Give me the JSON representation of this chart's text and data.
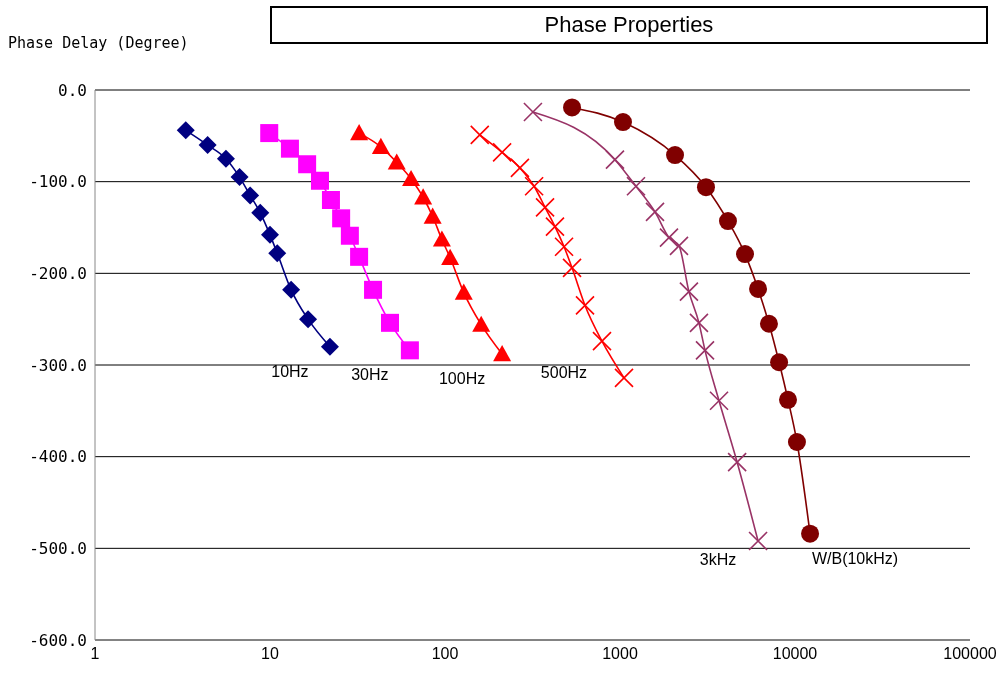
{
  "chart_data": {
    "type": "line",
    "title": "Phase Properties",
    "ylabel": "Phase Delay (Degree)",
    "log": "x",
    "grid": "y",
    "legend": false,
    "xlim": [
      1,
      100000
    ],
    "xticks": [
      1,
      10,
      100,
      1000,
      10000,
      100000
    ],
    "ylim": [
      -600,
      0
    ],
    "yticks": [
      {
        "value": 0,
        "label": "0.0"
      },
      {
        "value": -100,
        "label": "-100.0"
      },
      {
        "value": -200,
        "label": "-200.0"
      },
      {
        "value": -300,
        "label": "-300.0"
      },
      {
        "value": -400,
        "label": "-400.0"
      },
      {
        "value": -500,
        "label": "-500.0"
      },
      {
        "value": -600,
        "label": "-600.0"
      }
    ],
    "series": [
      {
        "name": "10Hz",
        "color": "#000080",
        "marker": "diamond",
        "x": [
          3.3,
          4.4,
          5.6,
          6.7,
          7.7,
          8.8,
          10,
          11,
          13.2,
          16.5,
          22
        ],
        "values": [
          -44,
          -60,
          -75,
          -95,
          -115,
          -134,
          -158,
          -178,
          -218,
          -250,
          -280
        ]
      },
      {
        "name": "30Hz",
        "color": "#ff00ff",
        "marker": "square",
        "x": [
          9.9,
          13,
          16.3,
          19.3,
          22.3,
          25.5,
          28.6,
          32.3,
          38.8,
          48.5,
          63
        ],
        "values": [
          -47,
          -64,
          -81,
          -99,
          -120,
          -140,
          -159,
          -182,
          -218,
          -254,
          -284
        ]
      },
      {
        "name": "100Hz",
        "color": "#ff0000",
        "marker": "triangle",
        "x": [
          32.3,
          43,
          53,
          64,
          75,
          85,
          96,
          107,
          128,
          161,
          212
        ],
        "values": [
          -47,
          -62,
          -79,
          -97,
          -117,
          -138,
          -163,
          -183,
          -221,
          -256,
          -288
        ]
      },
      {
        "name": "500Hz",
        "color": "#ff0000",
        "marker": "cross",
        "x": [
          158,
          212,
          268,
          323,
          373,
          425,
          479,
          532,
          631,
          789,
          1054
        ],
        "values": [
          -49,
          -68,
          -85,
          -105,
          -128,
          -149,
          -171,
          -194,
          -235,
          -274,
          -314
        ]
      },
      {
        "name": "3kHz",
        "color": "#993366",
        "marker": "cross",
        "x": [
          318,
          936,
          1234,
          1585,
          1905,
          2173,
          2477,
          2826,
          3060,
          3680,
          4670,
          6150
        ],
        "values": [
          -24,
          -76,
          -105,
          -133,
          -161,
          -170,
          -220,
          -254,
          -284,
          -339,
          -406,
          -492
        ]
      },
      {
        "name": "W/B(10kHz)",
        "color": "#800000",
        "marker": "circle",
        "x": [
          532,
          1040,
          2063,
          3100,
          4140,
          5180,
          6150,
          7100,
          8110,
          9120,
          10260,
          12190
        ],
        "values": [
          -19,
          -35,
          -71,
          -106,
          -143,
          -179,
          -217,
          -255,
          -297,
          -338,
          -384,
          -484
        ]
      }
    ]
  }
}
